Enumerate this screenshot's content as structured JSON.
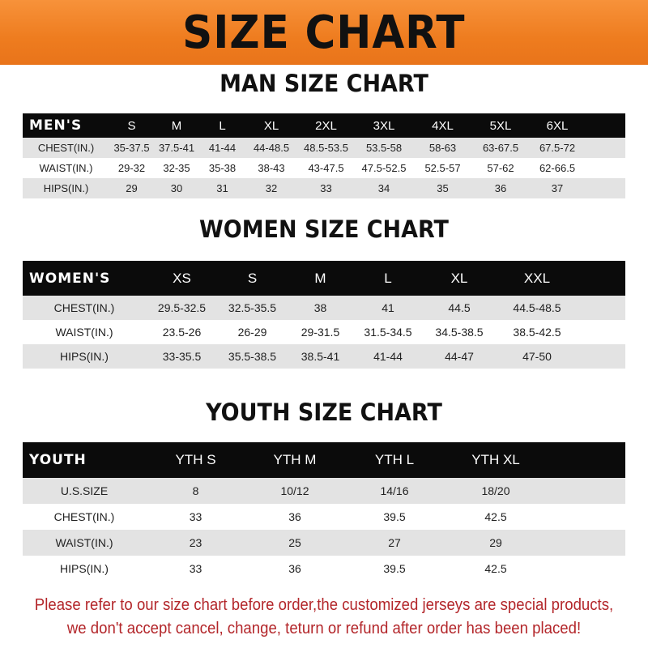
{
  "banner": {
    "title": "SIZE CHART",
    "color": "#ee7c1f"
  },
  "men": {
    "title": "MAN SIZE CHART",
    "header": [
      "MEN'S",
      "S",
      "M",
      "L",
      "XL",
      "2XL",
      "3XL",
      "4XL",
      "5XL",
      "6XL"
    ],
    "rows": [
      [
        "CHEST(IN.)",
        "35-37.5",
        "37.5-41",
        "41-44",
        "44-48.5",
        "48.5-53.5",
        "53.5-58",
        "58-63",
        "63-67.5",
        "67.5-72"
      ],
      [
        "WAIST(IN.)",
        "29-32",
        "32-35",
        "35-38",
        "38-43",
        "43-47.5",
        "47.5-52.5",
        "52.5-57",
        "57-62",
        "62-66.5"
      ],
      [
        "HIPS(IN.)",
        "29",
        "30",
        "31",
        "32",
        "33",
        "34",
        "35",
        "36",
        "37"
      ]
    ]
  },
  "women": {
    "title": "WOMEN SIZE CHART",
    "header": [
      "WOMEN'S",
      "XS",
      "S",
      "M",
      "L",
      "XL",
      "XXL"
    ],
    "rows": [
      [
        "CHEST(IN.)",
        "29.5-32.5",
        "32.5-35.5",
        "38",
        "41",
        "44.5",
        "44.5-48.5"
      ],
      [
        "WAIST(IN.)",
        "23.5-26",
        "26-29",
        "29-31.5",
        "31.5-34.5",
        "34.5-38.5",
        "38.5-42.5"
      ],
      [
        "HIPS(IN.)",
        "33-35.5",
        "35.5-38.5",
        "38.5-41",
        "41-44",
        "44-47",
        "47-50"
      ]
    ]
  },
  "youth": {
    "title": "YOUTH SIZE CHART",
    "header": [
      "YOUTH",
      "YTH S",
      "YTH M",
      "YTH L",
      "YTH XL"
    ],
    "rows": [
      [
        "U.S.SIZE",
        "8",
        "10/12",
        "14/16",
        "18/20"
      ],
      [
        "CHEST(IN.)",
        "33",
        "36",
        "39.5",
        "42.5"
      ],
      [
        "WAIST(IN.)",
        "23",
        "25",
        "27",
        "29"
      ],
      [
        "HIPS(IN.)",
        "33",
        "36",
        "39.5",
        "42.5"
      ]
    ]
  },
  "notice": {
    "line1": "Please refer to our size chart before order,the customized jerseys are special products,",
    "line2": "we don't accept cancel, change, teturn or refund after order has been placed!",
    "color": "#b3262a"
  }
}
